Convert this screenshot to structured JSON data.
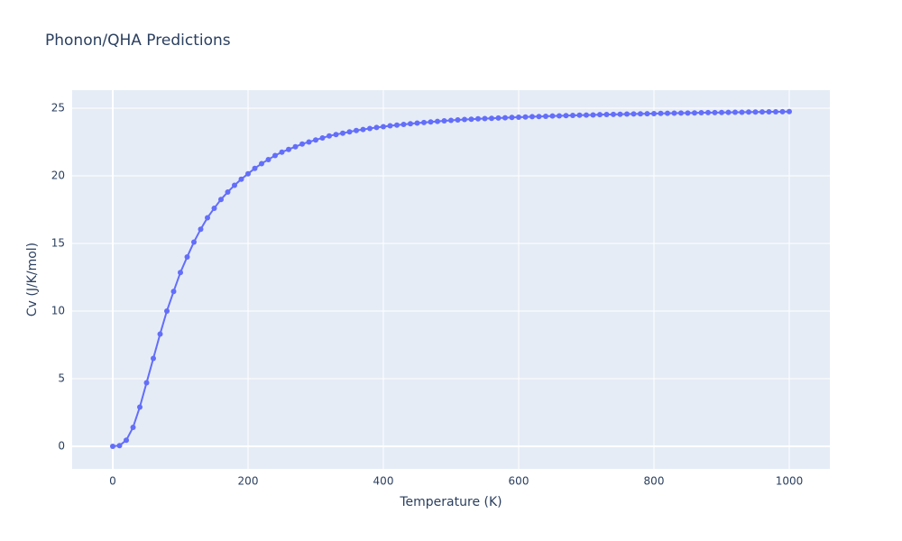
{
  "chart_data": {
    "type": "line",
    "title": "Phonon/QHA Predictions",
    "x_label": "Temperature (K)",
    "y_label": "Cv (J/K/mol)",
    "color": "#636efa",
    "grid": true,
    "markers": true,
    "x": [
      0,
      10,
      20,
      30,
      40,
      50,
      60,
      70,
      80,
      90,
      100,
      110,
      120,
      130,
      140,
      150,
      160,
      170,
      180,
      190,
      200,
      210,
      220,
      230,
      240,
      250,
      260,
      270,
      280,
      290,
      300,
      310,
      320,
      330,
      340,
      350,
      360,
      370,
      380,
      390,
      400,
      410,
      420,
      430,
      440,
      450,
      460,
      470,
      480,
      490,
      500,
      510,
      520,
      530,
      540,
      550,
      560,
      570,
      580,
      590,
      600,
      610,
      620,
      630,
      640,
      650,
      660,
      670,
      680,
      690,
      700,
      710,
      720,
      730,
      740,
      750,
      760,
      770,
      780,
      790,
      800,
      810,
      820,
      830,
      840,
      850,
      860,
      870,
      880,
      890,
      900,
      910,
      920,
      930,
      940,
      950,
      960,
      970,
      980,
      990,
      1000
    ],
    "values": [
      0,
      0.05,
      0.45,
      1.4,
      2.9,
      4.7,
      6.5,
      8.3,
      10.0,
      11.45,
      12.85,
      14.0,
      15.1,
      16.05,
      16.9,
      17.6,
      18.25,
      18.8,
      19.3,
      19.75,
      20.15,
      20.55,
      20.9,
      21.2,
      21.5,
      21.75,
      21.95,
      22.15,
      22.35,
      22.5,
      22.65,
      22.8,
      22.95,
      23.05,
      23.15,
      23.25,
      23.35,
      23.42,
      23.5,
      23.57,
      23.63,
      23.7,
      23.75,
      23.8,
      23.85,
      23.9,
      23.94,
      23.98,
      24.02,
      24.06,
      24.1,
      24.13,
      24.16,
      24.18,
      24.21,
      24.23,
      24.25,
      24.27,
      24.29,
      24.31,
      24.33,
      24.35,
      24.37,
      24.38,
      24.4,
      24.42,
      24.43,
      24.45,
      24.46,
      24.48,
      24.49,
      24.5,
      24.52,
      24.53,
      24.54,
      24.55,
      24.56,
      24.57,
      24.58,
      24.59,
      24.6,
      24.61,
      24.62,
      24.63,
      24.64,
      24.64,
      24.65,
      24.66,
      24.67,
      24.67,
      24.68,
      24.69,
      24.7,
      24.7,
      24.71,
      24.71,
      24.72,
      24.73,
      24.73,
      24.74,
      24.75
    ],
    "xlim": [
      -60,
      1060
    ],
    "xticks": [
      0,
      200,
      400,
      600,
      800,
      1000
    ],
    "ylim": [
      -1.67,
      26.33
    ],
    "yticks": [
      0,
      5,
      10,
      15,
      20,
      25
    ]
  }
}
